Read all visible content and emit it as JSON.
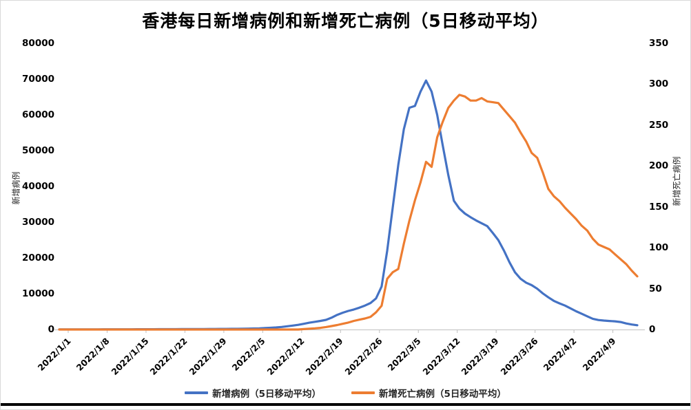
{
  "title": "香港每日新增病例和新增死亡病例（5日移动平均）",
  "chart_data": {
    "type": "line",
    "title": "香港每日新增病例和新增死亡病例（5日移动平均）",
    "grid": false,
    "legend_position": "bottom",
    "axis_color": "#bfbfbf",
    "x": [
      "2022/1/1",
      "2022/1/2",
      "2022/1/3",
      "2022/1/4",
      "2022/1/5",
      "2022/1/6",
      "2022/1/7",
      "2022/1/8",
      "2022/1/9",
      "2022/1/10",
      "2022/1/11",
      "2022/1/12",
      "2022/1/13",
      "2022/1/14",
      "2022/1/15",
      "2022/1/16",
      "2022/1/17",
      "2022/1/18",
      "2022/1/19",
      "2022/1/20",
      "2022/1/21",
      "2022/1/22",
      "2022/1/23",
      "2022/1/24",
      "2022/1/25",
      "2022/1/26",
      "2022/1/27",
      "2022/1/28",
      "2022/1/29",
      "2022/1/30",
      "2022/1/31",
      "2022/2/1",
      "2022/2/2",
      "2022/2/3",
      "2022/2/4",
      "2022/2/5",
      "2022/2/6",
      "2022/2/7",
      "2022/2/8",
      "2022/2/9",
      "2022/2/10",
      "2022/2/11",
      "2022/2/12",
      "2022/2/13",
      "2022/2/14",
      "2022/2/15",
      "2022/2/16",
      "2022/2/17",
      "2022/2/18",
      "2022/2/19",
      "2022/2/20",
      "2022/2/21",
      "2022/2/22",
      "2022/2/23",
      "2022/2/24",
      "2022/2/25",
      "2022/2/26",
      "2022/2/27",
      "2022/2/28",
      "2022/3/1",
      "2022/3/2",
      "2022/3/3",
      "2022/3/4",
      "2022/3/5",
      "2022/3/6",
      "2022/3/7",
      "2022/3/8",
      "2022/3/9",
      "2022/3/10",
      "2022/3/11",
      "2022/3/12",
      "2022/3/13",
      "2022/3/14",
      "2022/3/15",
      "2022/3/16",
      "2022/3/17",
      "2022/3/18",
      "2022/3/19",
      "2022/3/20",
      "2022/3/21",
      "2022/3/22",
      "2022/3/23",
      "2022/3/24",
      "2022/3/25",
      "2022/3/26",
      "2022/3/27",
      "2022/3/28",
      "2022/3/29",
      "2022/3/30",
      "2022/3/31",
      "2022/4/1",
      "2022/4/2",
      "2022/4/3",
      "2022/4/4",
      "2022/4/5",
      "2022/4/6",
      "2022/4/7",
      "2022/4/8",
      "2022/4/9",
      "2022/4/10",
      "2022/4/11",
      "2022/4/12",
      "2022/4/13",
      "2022/4/14",
      "2022/4/15"
    ],
    "x_tick_labels": [
      "2022/1/1",
      "2022/1/8",
      "2022/1/15",
      "2022/1/22",
      "2022/1/29",
      "2022/2/5",
      "2022/2/12",
      "2022/2/19",
      "2022/2/26",
      "2022/3/5",
      "2022/3/12",
      "2022/3/19",
      "2022/3/26",
      "2022/4/2",
      "2022/4/9"
    ],
    "left_axis": {
      "label": "新增病例",
      "min": 0,
      "max": 80000,
      "tick_step": 10000,
      "ticks": [
        "0",
        "10000",
        "20000",
        "30000",
        "40000",
        "50000",
        "60000",
        "70000",
        "80000"
      ]
    },
    "right_axis": {
      "label": "新增死亡病例",
      "min": 0,
      "max": 350,
      "tick_step": 50,
      "ticks": [
        "0",
        "50",
        "100",
        "150",
        "200",
        "250",
        "300",
        "350"
      ]
    },
    "series": [
      {
        "name": "新增病例（5日移动平均）",
        "axis": "left",
        "color": "#4472C4",
        "data_name": "cases-line",
        "values": [
          30,
          32,
          34,
          36,
          38,
          40,
          43,
          46,
          49,
          52,
          55,
          58,
          62,
          66,
          70,
          74,
          78,
          83,
          88,
          93,
          98,
          104,
          110,
          117,
          124,
          131,
          139,
          147,
          156,
          165,
          175,
          185,
          200,
          220,
          245,
          280,
          330,
          400,
          480,
          580,
          720,
          900,
          1100,
          1300,
          1600,
          1900,
          2150,
          2400,
          2700,
          3300,
          4100,
          4700,
          5200,
          5600,
          6100,
          6700,
          7400,
          8700,
          12000,
          22000,
          34000,
          46000,
          56000,
          62000,
          62500,
          66500,
          69600,
          66500,
          60000,
          51500,
          43200,
          36000,
          33800,
          32400,
          31400,
          30500,
          29700,
          28900,
          27000,
          25000,
          22100,
          18800,
          16000,
          14200,
          13100,
          12400,
          11400,
          10100,
          9000,
          8000,
          7300,
          6700,
          5900,
          5100,
          4400,
          3700,
          3000,
          2650,
          2500,
          2380,
          2280,
          2100,
          1700,
          1400,
          1200
        ]
      },
      {
        "name": "新增死亡病例（5日移动平均）",
        "axis": "right",
        "color": "#ED7D31",
        "data_name": "deaths-line",
        "values": [
          0,
          0,
          0,
          0,
          0,
          0,
          0,
          0,
          0,
          0,
          0,
          0,
          0,
          0,
          0,
          0,
          0,
          0,
          0,
          0,
          0,
          0,
          0,
          0,
          0,
          0,
          0,
          0,
          0,
          0,
          0,
          0,
          0,
          0,
          0,
          0,
          0,
          0,
          0,
          0,
          0,
          0,
          0,
          0,
          0.5,
          1,
          1.4,
          2,
          3,
          4.2,
          5.5,
          7,
          8.5,
          10.5,
          12,
          13.5,
          15.5,
          21,
          29,
          62,
          70,
          74,
          105,
          133,
          158,
          180,
          205,
          199,
          235,
          254,
          271,
          280,
          287,
          285,
          280,
          280,
          283,
          279,
          278,
          277,
          269,
          261,
          253,
          241,
          230,
          216,
          210,
          192,
          172,
          163,
          157,
          149,
          142,
          135,
          127,
          121,
          111,
          104,
          101,
          98,
          92,
          86,
          80,
          72,
          65
        ]
      }
    ]
  }
}
